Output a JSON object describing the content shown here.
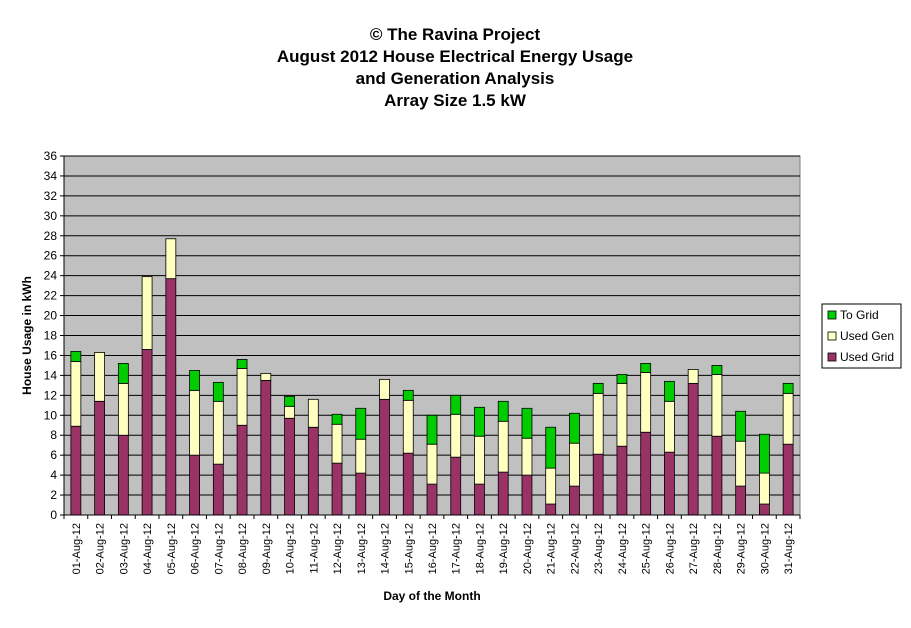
{
  "chart_data": {
    "type": "bar",
    "stacked": true,
    "title": [
      "© The Ravina Project",
      "August 2012 House Electrical Energy Usage",
      "and Generation Analysis",
      "Array Size 1.5 kW"
    ],
    "xlabel": "Day of the Month",
    "ylabel": "House Usage in kWh",
    "ylim": [
      0,
      36
    ],
    "yticks": [
      0,
      2,
      4,
      6,
      8,
      10,
      12,
      14,
      16,
      18,
      20,
      22,
      24,
      26,
      28,
      30,
      32,
      34,
      36
    ],
    "grid": true,
    "legend_position": "right",
    "categories": [
      "01-Aug-12",
      "02-Aug-12",
      "03-Aug-12",
      "04-Aug-12",
      "05-Aug-12",
      "06-Aug-12",
      "07-Aug-12",
      "08-Aug-12",
      "09-Aug-12",
      "10-Aug-12",
      "11-Aug-12",
      "12-Aug-12",
      "13-Aug-12",
      "14-Aug-12",
      "15-Aug-12",
      "16-Aug-12",
      "17-Aug-12",
      "18-Aug-12",
      "19-Aug-12",
      "20-Aug-12",
      "21-Aug-12",
      "22-Aug-12",
      "23-Aug-12",
      "24-Aug-12",
      "25-Aug-12",
      "26-Aug-12",
      "27-Aug-12",
      "28-Aug-12",
      "29-Aug-12",
      "30-Aug-12",
      "31-Aug-12"
    ],
    "series": [
      {
        "name": "Used Grid",
        "color": "#993366",
        "values": [
          8.9,
          11.4,
          8.0,
          16.6,
          23.7,
          6.0,
          5.1,
          9.0,
          13.5,
          9.7,
          8.8,
          5.2,
          4.2,
          11.6,
          6.2,
          3.1,
          5.8,
          3.1,
          4.3,
          4.0,
          1.1,
          2.9,
          6.1,
          6.9,
          8.3,
          6.3,
          13.2,
          7.9,
          2.9,
          1.1,
          7.1
        ]
      },
      {
        "name": "Used Gen",
        "color": "#ffffc0",
        "values": [
          6.5,
          4.9,
          5.2,
          7.3,
          4.0,
          6.5,
          6.3,
          5.7,
          0.7,
          1.2,
          2.8,
          3.9,
          3.4,
          2.0,
          5.3,
          4.0,
          4.3,
          4.8,
          5.1,
          3.7,
          3.6,
          4.3,
          6.1,
          6.3,
          6.0,
          5.1,
          1.4,
          6.2,
          4.5,
          3.1,
          5.1
        ]
      },
      {
        "name": "To Grid",
        "color": "#00cc00",
        "values": [
          1.0,
          0.0,
          2.0,
          0.0,
          0.0,
          2.0,
          1.9,
          0.9,
          0.0,
          1.0,
          0.0,
          1.0,
          3.1,
          0.0,
          1.0,
          2.9,
          1.9,
          2.9,
          2.0,
          3.0,
          4.1,
          3.0,
          1.0,
          0.9,
          0.9,
          2.0,
          0.0,
          0.9,
          3.0,
          3.9,
          1.0
        ]
      }
    ]
  }
}
